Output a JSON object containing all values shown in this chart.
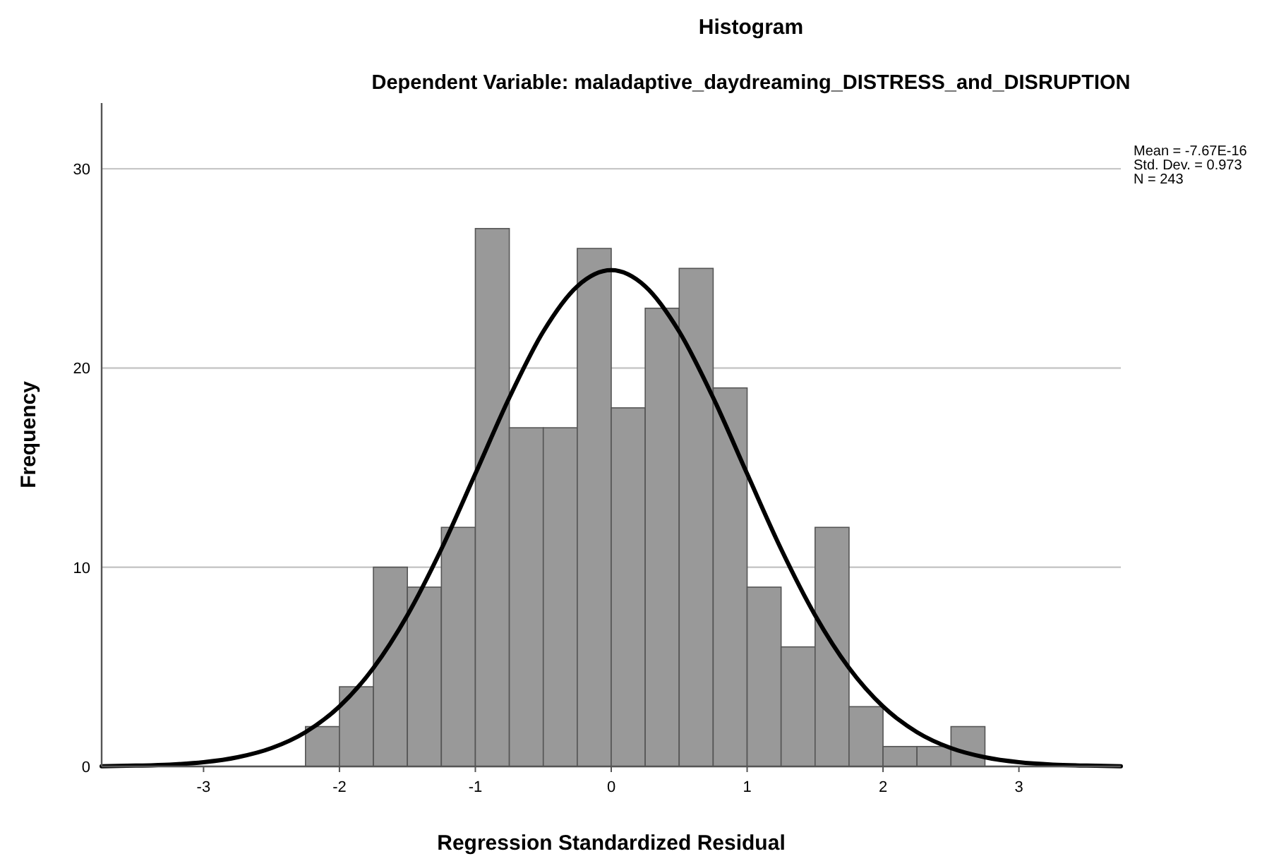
{
  "chart_data": {
    "type": "histogram",
    "title": "Histogram",
    "subtitle": "Dependent Variable: maladaptive_daydreaming_DISTRESS_and_DISRUPTION",
    "xlabel": "Regression Standardized Residual",
    "ylabel": "Frequency",
    "annotations": [
      "Mean = -7.67E-16\nStd. Dev. = 0.973\nN = 243"
    ],
    "xlim": [
      -3.75,
      3.75
    ],
    "xticks": [
      -3,
      -2,
      -1,
      0,
      1,
      2,
      3
    ],
    "ylim": [
      0,
      33.3
    ],
    "yticks": [
      0,
      10,
      20,
      30
    ],
    "grid": "y",
    "color": "#999999",
    "bins": [
      -2.25,
      -2,
      -1.75,
      -1.5,
      -1.25,
      -1,
      -0.75,
      -0.5,
      -0.25,
      0,
      0.25,
      0.5,
      0.75,
      1,
      1.25,
      1.5,
      1.75,
      2,
      2.25,
      2.5,
      2.75
    ],
    "values": [
      2,
      4,
      10,
      9,
      12,
      27,
      17,
      17,
      26,
      18,
      23,
      25,
      19,
      9,
      6,
      12,
      3,
      1,
      1,
      2
    ],
    "series": [
      {
        "type": "line",
        "color": "#000000",
        "x": [
          -3.75,
          -3.5,
          -3.25,
          -3,
          -2.75,
          -2.5,
          -2.25,
          -2,
          -1.75,
          -1.5,
          -1.25,
          -1,
          -0.75,
          -0.5,
          -0.25,
          0,
          0.25,
          0.5,
          0.75,
          1,
          1.25,
          1.5,
          1.75,
          2,
          2.25,
          2.5,
          2.75,
          3,
          3.25,
          3.5,
          3.75
        ],
        "values": [
          0.01,
          0.04,
          0.09,
          0.21,
          0.46,
          0.92,
          1.72,
          3.01,
          4.94,
          7.59,
          10.91,
          14.69,
          18.51,
          21.83,
          24.1,
          24.91,
          24.1,
          21.83,
          18.51,
          14.69,
          10.91,
          7.59,
          4.94,
          3.01,
          1.72,
          0.92,
          0.46,
          0.21,
          0.09,
          0.04,
          0.01
        ]
      }
    ]
  }
}
